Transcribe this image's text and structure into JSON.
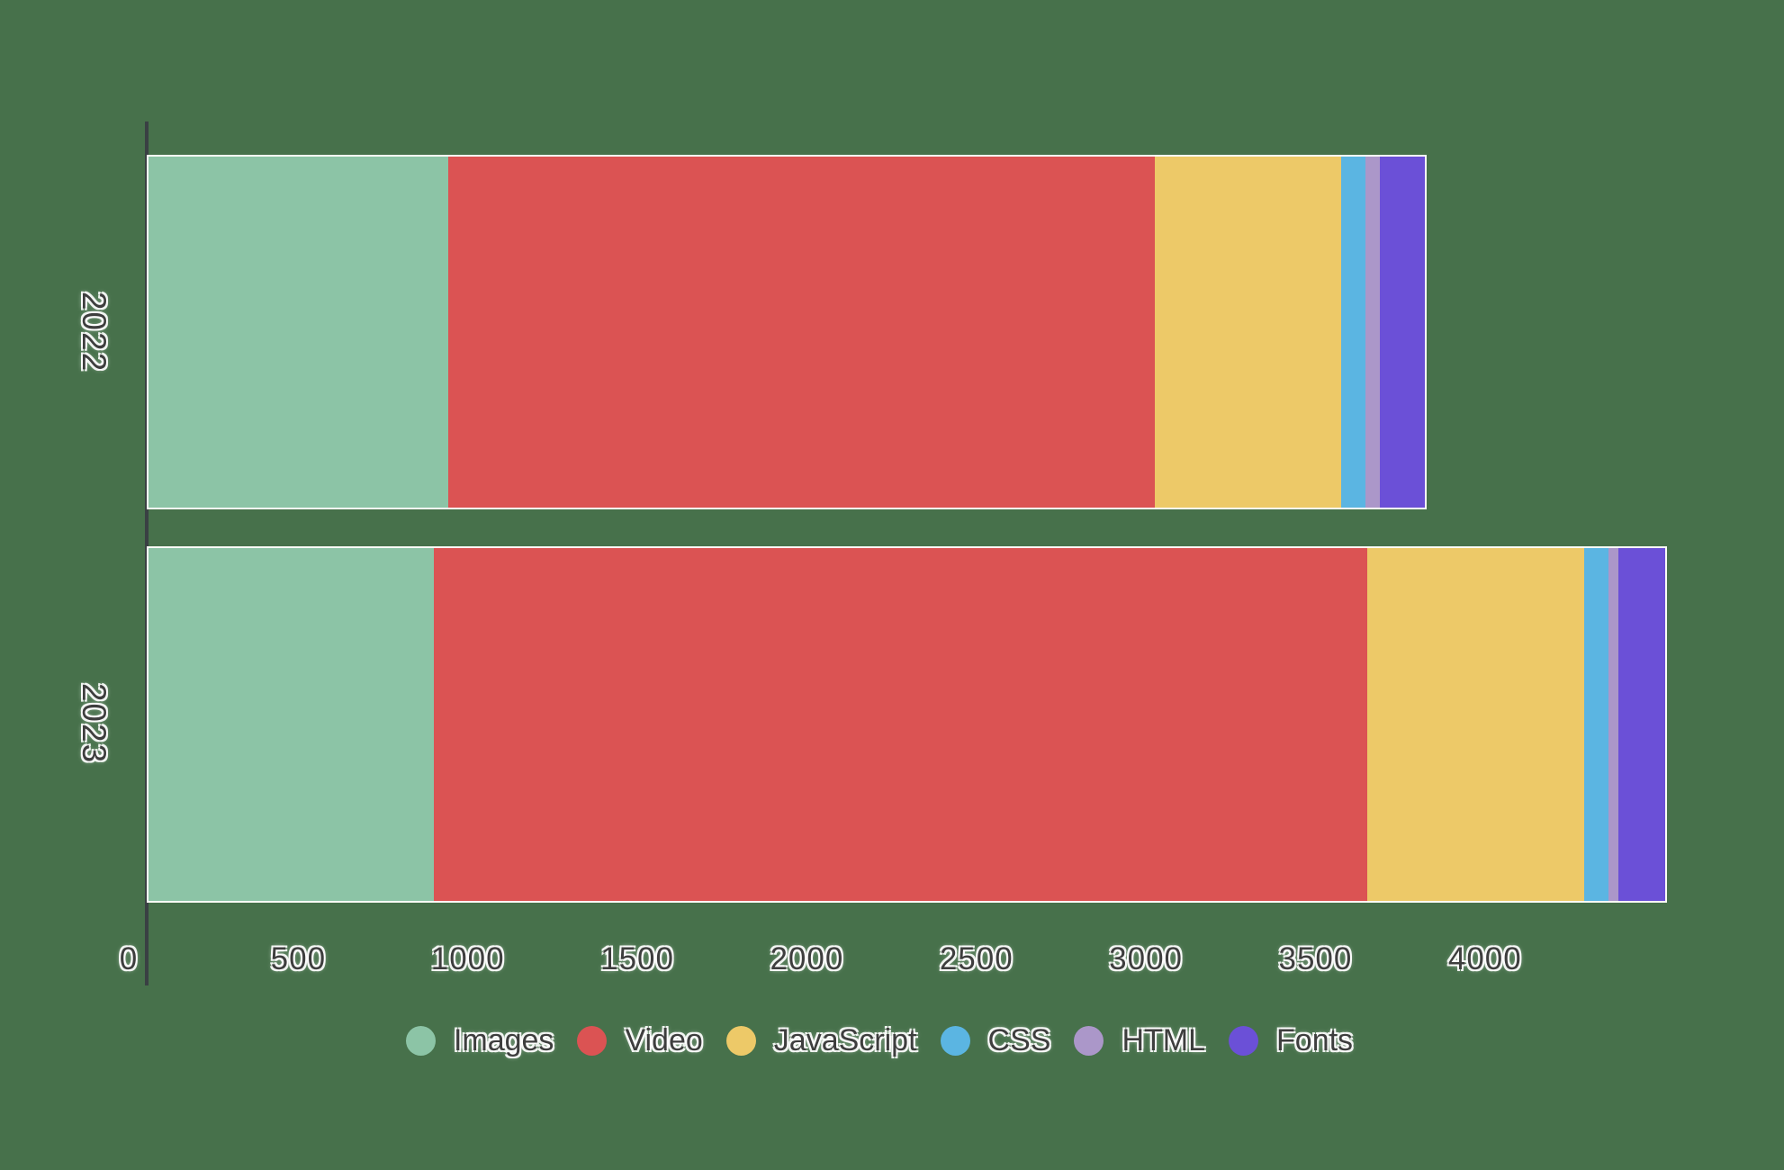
{
  "page": {
    "background_color": "#47714B",
    "axis_spine_color": "#3A4043",
    "bar_outline_color": "#FBFBF6",
    "text_color": "#3E3E3E"
  },
  "chart_data": {
    "type": "bar",
    "orientation": "horizontal",
    "stacked": true,
    "title": "",
    "xlabel": "",
    "ylabel": "",
    "categories": [
      "2022",
      "2023"
    ],
    "series": [
      {
        "name": "Images",
        "color": "#8CC4A6",
        "values": [
          865,
          825
        ]
      },
      {
        "name": "Video",
        "color": "#DB5353",
        "values": [
          2040,
          2695
        ]
      },
      {
        "name": "JavaScript",
        "color": "#EDC968",
        "values": [
          540,
          625
        ]
      },
      {
        "name": "CSS",
        "color": "#5BB5E2",
        "values": [
          70,
          70
        ]
      },
      {
        "name": "HTML",
        "color": "#AB97C9",
        "values": [
          40,
          30
        ]
      },
      {
        "name": "Fonts",
        "color": "#6B50D7",
        "values": [
          130,
          135
        ]
      }
    ],
    "totals": [
      3685,
      4380
    ],
    "x_ticks": [
      0,
      500,
      1000,
      1500,
      2000,
      2500,
      3000,
      3500,
      4000
    ],
    "xlim": [
      0,
      4600
    ],
    "grid": false,
    "legend_position": "bottom",
    "legend": [
      "Images",
      "Video",
      "JavaScript",
      "CSS",
      "HTML",
      "Fonts"
    ]
  }
}
